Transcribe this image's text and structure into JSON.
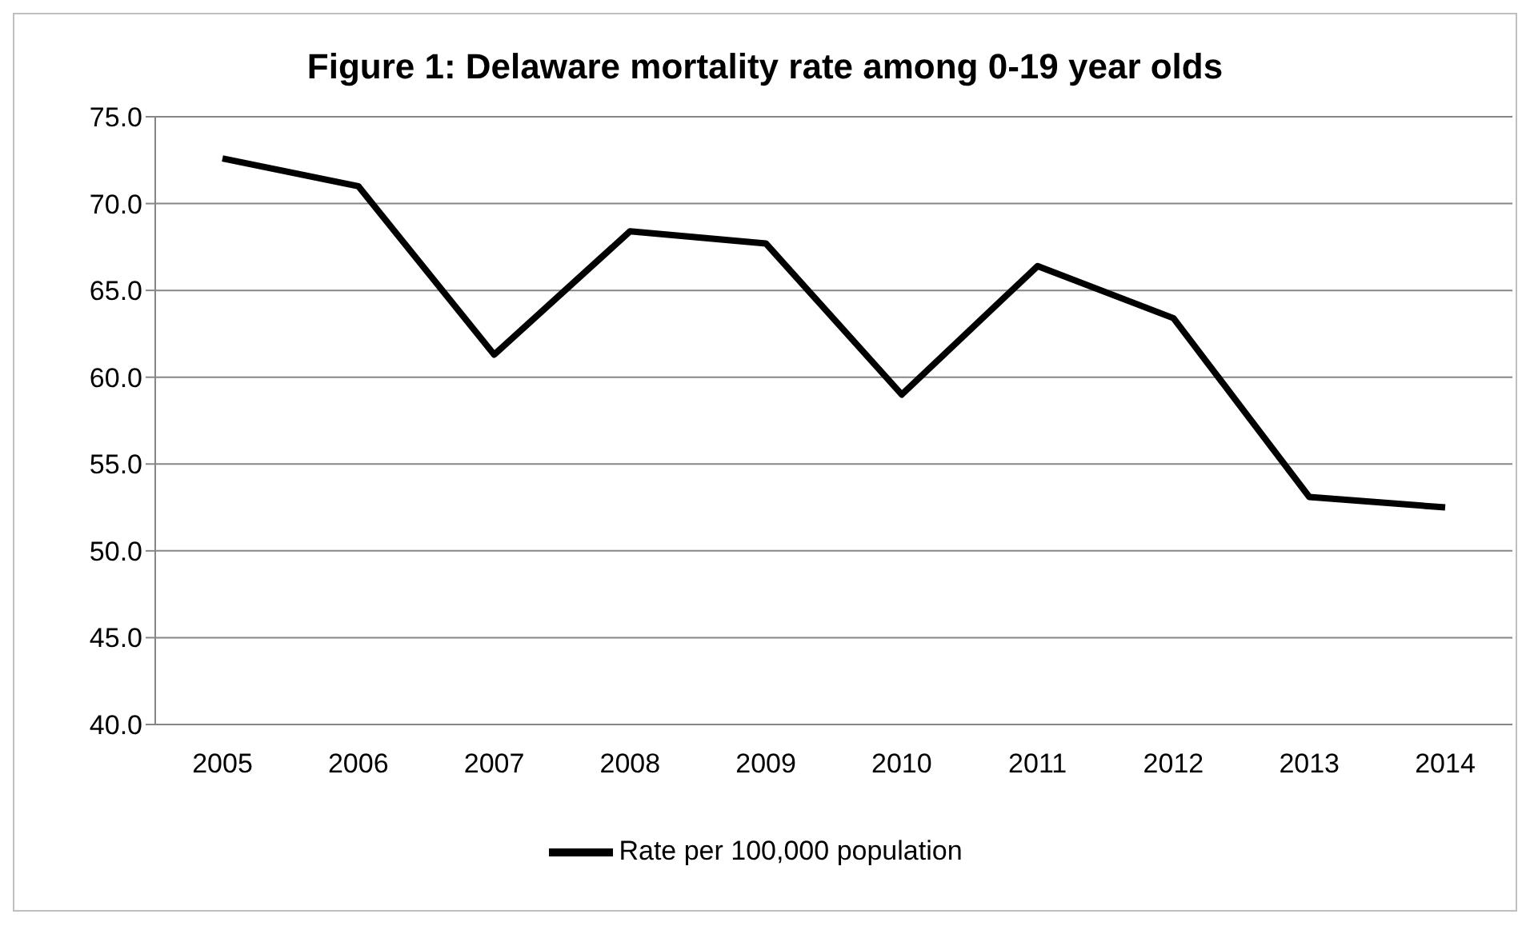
{
  "chart_data": {
    "type": "line",
    "title": "Figure 1: Delaware mortality rate among 0-19 year olds",
    "categories": [
      "2005",
      "2006",
      "2007",
      "2008",
      "2009",
      "2010",
      "2011",
      "2012",
      "2013",
      "2014"
    ],
    "series": [
      {
        "name": "Rate per 100,000 population",
        "color": "#000000",
        "values": [
          72.6,
          71.0,
          61.3,
          68.4,
          67.7,
          59.0,
          66.4,
          63.4,
          53.1,
          52.5
        ]
      }
    ],
    "ylim": [
      40,
      75
    ],
    "yticks": [
      {
        "value": 40,
        "label": "40.0"
      },
      {
        "value": 45,
        "label": "45.0"
      },
      {
        "value": 50,
        "label": "50.0"
      },
      {
        "value": 55,
        "label": "55.0"
      },
      {
        "value": 60,
        "label": "60.0"
      },
      {
        "value": 65,
        "label": "65.0"
      },
      {
        "value": 70,
        "label": "70.0"
      },
      {
        "value": 75,
        "label": "75.0"
      }
    ],
    "grid": "y",
    "legend": "bottom",
    "marker": "none",
    "line_style": "solid"
  }
}
